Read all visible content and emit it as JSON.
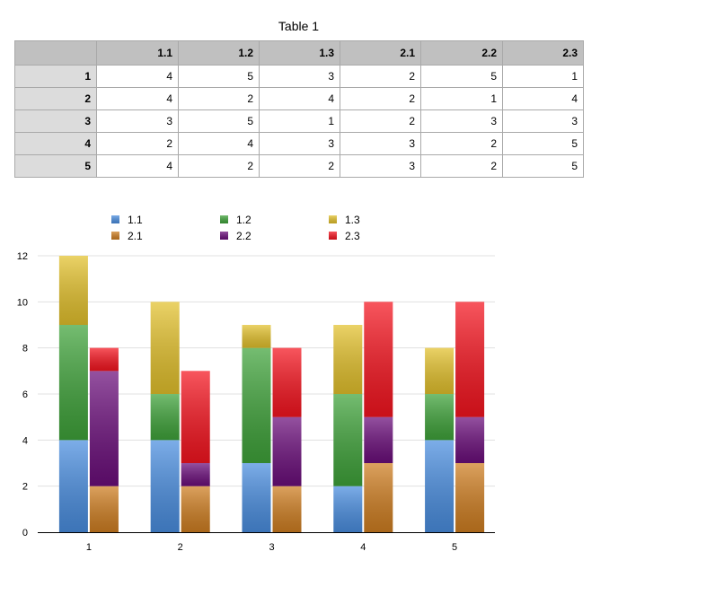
{
  "table": {
    "title": "Table 1",
    "columns": [
      "1.1",
      "1.2",
      "1.3",
      "2.1",
      "2.2",
      "2.3"
    ],
    "rows": [
      {
        "label": "1",
        "values": [
          "4",
          "5",
          "3",
          "2",
          "5",
          "1"
        ]
      },
      {
        "label": "2",
        "values": [
          "4",
          "2",
          "4",
          "2",
          "1",
          "4"
        ]
      },
      {
        "label": "3",
        "values": [
          "3",
          "5",
          "1",
          "2",
          "3",
          "3"
        ]
      },
      {
        "label": "4",
        "values": [
          "2",
          "4",
          "3",
          "3",
          "2",
          "5"
        ]
      },
      {
        "label": "5",
        "values": [
          "4",
          "2",
          "2",
          "3",
          "2",
          "5"
        ]
      }
    ]
  },
  "chart_data": {
    "type": "bar",
    "stacked": true,
    "categories": [
      "1",
      "2",
      "3",
      "4",
      "5"
    ],
    "stacks": [
      {
        "series": [
          {
            "name": "1.1",
            "values": [
              4,
              4,
              3,
              2,
              4
            ],
            "color": "#4a8ee0"
          },
          {
            "name": "1.2",
            "values": [
              5,
              2,
              5,
              4,
              2
            ],
            "color": "#3fa33a"
          },
          {
            "name": "1.3",
            "values": [
              3,
              4,
              1,
              3,
              2
            ],
            "color": "#e3c12c"
          }
        ]
      },
      {
        "series": [
          {
            "name": "2.1",
            "values": [
              2,
              2,
              2,
              3,
              3
            ],
            "color": "#cf7e21"
          },
          {
            "name": "2.2",
            "values": [
              5,
              1,
              3,
              2,
              2
            ],
            "color": "#6b0e7b"
          },
          {
            "name": "2.3",
            "values": [
              1,
              4,
              3,
              5,
              5
            ],
            "color": "#f5141f"
          }
        ]
      }
    ],
    "ylim": [
      0,
      12
    ],
    "yticks": [
      0,
      2,
      4,
      6,
      8,
      10,
      12
    ],
    "grid": true,
    "legend": [
      {
        "name": "1.1",
        "color": "#4a8ee0"
      },
      {
        "name": "1.2",
        "color": "#3fa33a"
      },
      {
        "name": "1.3",
        "color": "#e3c12c"
      },
      {
        "name": "2.1",
        "color": "#cf7e21"
      },
      {
        "name": "2.2",
        "color": "#6b0e7b"
      },
      {
        "name": "2.3",
        "color": "#f5141f"
      }
    ],
    "legend_position": "top"
  }
}
